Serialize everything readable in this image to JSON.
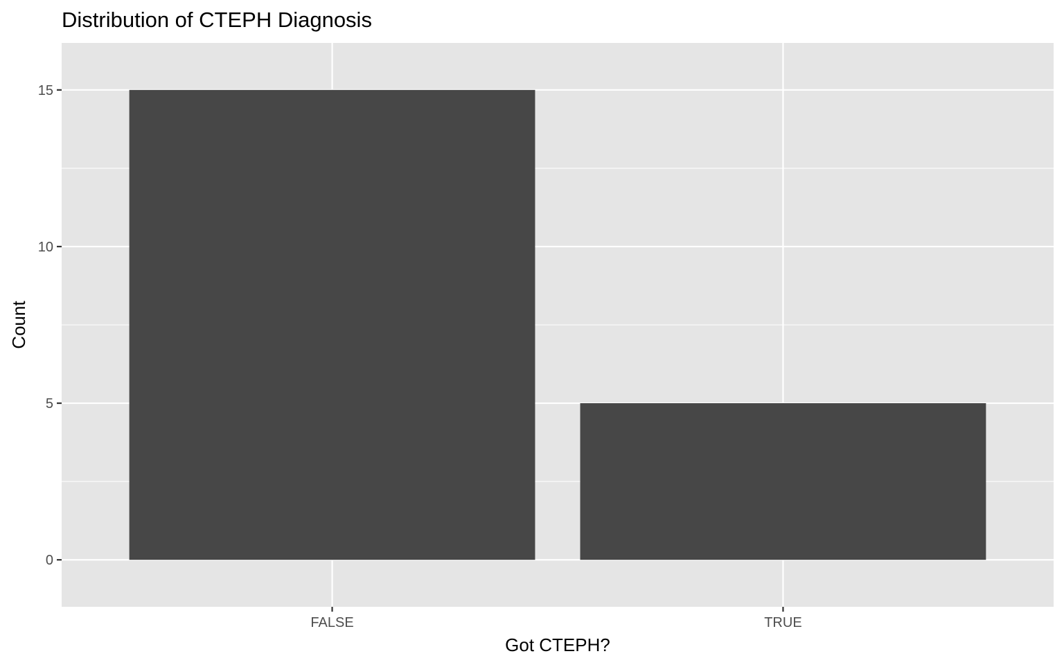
{
  "chart_data": {
    "type": "bar",
    "title": "Distribution of CTEPH Diagnosis",
    "xlabel": "Got CTEPH?",
    "ylabel": "Count",
    "categories": [
      "FALSE",
      "TRUE"
    ],
    "values": [
      15,
      5
    ],
    "ylim": [
      -1.5,
      16.5
    ],
    "yticks": [
      "0",
      "5",
      "10",
      "15"
    ],
    "grid": true,
    "legend": "none",
    "colors": {
      "bar": "#474747",
      "panel": "#e5e5e5",
      "grid": "#ffffff",
      "tick_label": "#4d4d4d",
      "tick": "#333333"
    }
  }
}
